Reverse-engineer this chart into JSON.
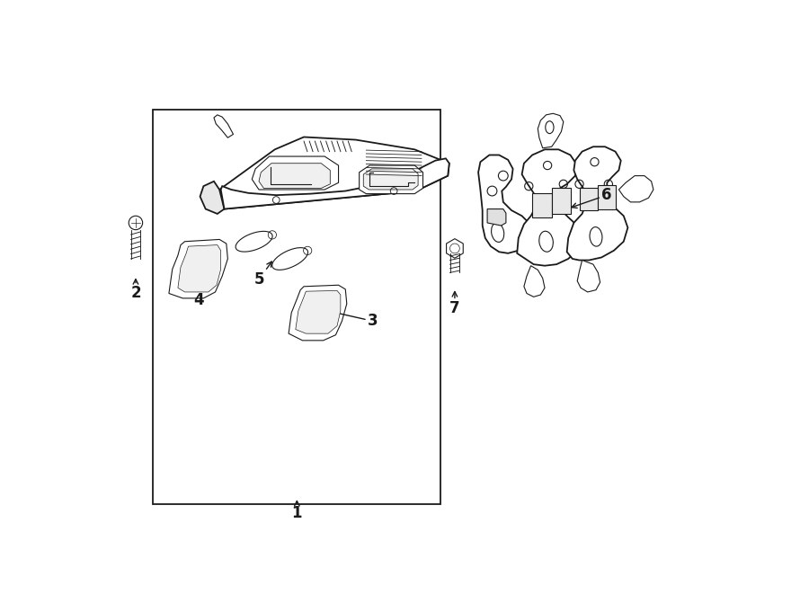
{
  "bg_color": "#ffffff",
  "line_color": "#1a1a1a",
  "gray_fill": "#f0f0f0",
  "lw_main": 1.3,
  "lw_thin": 0.8,
  "lw_hair": 0.5
}
